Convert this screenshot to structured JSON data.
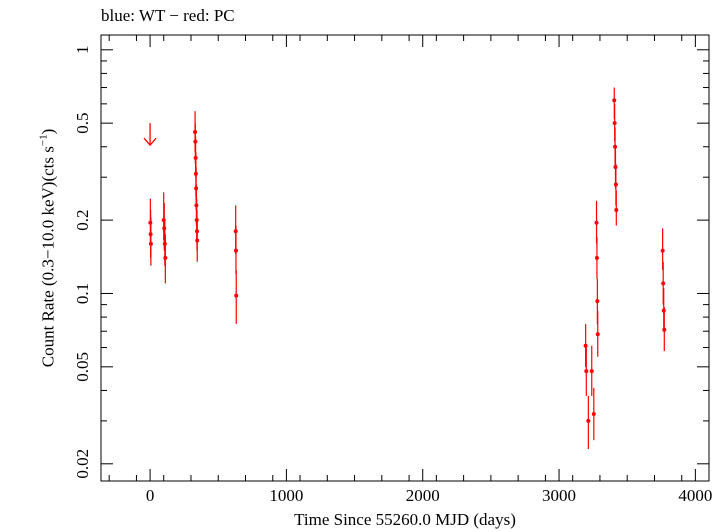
{
  "chart_data": {
    "type": "scatter",
    "title": "blue: WT − red: PC",
    "xlabel": "Time Since 55260.0 MJD (days)",
    "ylabel_main": "Count Rate (0.3−10.0 keV)(cts s",
    "ylabel_sup": "−1",
    "ylabel_end": ")",
    "xlim": [
      -360,
      4100
    ],
    "ylim": [
      0.017,
      1.15
    ],
    "yscale": "log",
    "grid": false,
    "x_ticks": [
      0,
      1000,
      2000,
      3000,
      4000
    ],
    "x_tick_labels": [
      "0",
      "1000",
      "2000",
      "3000",
      "4000"
    ],
    "y_ticks": [
      0.02,
      0.05,
      0.1,
      0.2,
      0.5,
      1
    ],
    "y_tick_labels": [
      "0.02",
      "0.05",
      "0.1",
      "0.2",
      "0.5",
      "1"
    ],
    "colors": {
      "pc": "#ff0000",
      "axes": "#000000"
    },
    "series": [
      {
        "name": "PC",
        "points": [
          {
            "x": 2,
            "y": 0.195,
            "lo": 0.16,
            "hi": 0.245
          },
          {
            "x": 4,
            "y": 0.175,
            "lo": 0.14,
            "hi": 0.22
          },
          {
            "x": 6,
            "y": 0.16,
            "lo": 0.13,
            "hi": 0.205
          },
          {
            "x": 100,
            "y": 0.2,
            "lo": 0.165,
            "hi": 0.26
          },
          {
            "x": 104,
            "y": 0.185,
            "lo": 0.15,
            "hi": 0.235
          },
          {
            "x": 108,
            "y": 0.16,
            "lo": 0.13,
            "hi": 0.2
          },
          {
            "x": 112,
            "y": 0.14,
            "lo": 0.11,
            "hi": 0.175
          },
          {
            "x": 330,
            "y": 0.46,
            "lo": 0.38,
            "hi": 0.56
          },
          {
            "x": 332,
            "y": 0.42,
            "lo": 0.34,
            "hi": 0.5
          },
          {
            "x": 334,
            "y": 0.36,
            "lo": 0.3,
            "hi": 0.44
          },
          {
            "x": 336,
            "y": 0.31,
            "lo": 0.25,
            "hi": 0.38
          },
          {
            "x": 338,
            "y": 0.27,
            "lo": 0.22,
            "hi": 0.33
          },
          {
            "x": 340,
            "y": 0.23,
            "lo": 0.19,
            "hi": 0.28
          },
          {
            "x": 342,
            "y": 0.2,
            "lo": 0.165,
            "hi": 0.245
          },
          {
            "x": 344,
            "y": 0.18,
            "lo": 0.15,
            "hi": 0.22
          },
          {
            "x": 346,
            "y": 0.165,
            "lo": 0.135,
            "hi": 0.205
          },
          {
            "x": 628,
            "y": 0.18,
            "lo": 0.145,
            "hi": 0.23
          },
          {
            "x": 630,
            "y": 0.15,
            "lo": 0.12,
            "hi": 0.19
          },
          {
            "x": 632,
            "y": 0.098,
            "lo": 0.075,
            "hi": 0.125
          },
          {
            "x": 3195,
            "y": 0.061,
            "lo": 0.05,
            "hi": 0.075
          },
          {
            "x": 3200,
            "y": 0.048,
            "lo": 0.038,
            "hi": 0.06
          },
          {
            "x": 3215,
            "y": 0.03,
            "lo": 0.023,
            "hi": 0.038
          },
          {
            "x": 3240,
            "y": 0.048,
            "lo": 0.038,
            "hi": 0.061
          },
          {
            "x": 3255,
            "y": 0.032,
            "lo": 0.025,
            "hi": 0.041
          },
          {
            "x": 3275,
            "y": 0.195,
            "lo": 0.16,
            "hi": 0.24
          },
          {
            "x": 3278,
            "y": 0.14,
            "lo": 0.115,
            "hi": 0.17
          },
          {
            "x": 3281,
            "y": 0.093,
            "lo": 0.075,
            "hi": 0.115
          },
          {
            "x": 3284,
            "y": 0.068,
            "lo": 0.055,
            "hi": 0.085
          },
          {
            "x": 3405,
            "y": 0.62,
            "lo": 0.52,
            "hi": 0.7
          },
          {
            "x": 3408,
            "y": 0.5,
            "lo": 0.42,
            "hi": 0.6
          },
          {
            "x": 3411,
            "y": 0.4,
            "lo": 0.33,
            "hi": 0.48
          },
          {
            "x": 3414,
            "y": 0.33,
            "lo": 0.27,
            "hi": 0.4
          },
          {
            "x": 3417,
            "y": 0.28,
            "lo": 0.23,
            "hi": 0.34
          },
          {
            "x": 3420,
            "y": 0.22,
            "lo": 0.19,
            "hi": 0.265
          },
          {
            "x": 3760,
            "y": 0.15,
            "lo": 0.125,
            "hi": 0.185
          },
          {
            "x": 3764,
            "y": 0.11,
            "lo": 0.09,
            "hi": 0.135
          },
          {
            "x": 3768,
            "y": 0.085,
            "lo": 0.07,
            "hi": 0.105
          },
          {
            "x": 3772,
            "y": 0.071,
            "lo": 0.058,
            "hi": 0.088
          }
        ]
      }
    ],
    "upper_limits": [
      {
        "x": 0,
        "y": 0.5
      }
    ]
  }
}
